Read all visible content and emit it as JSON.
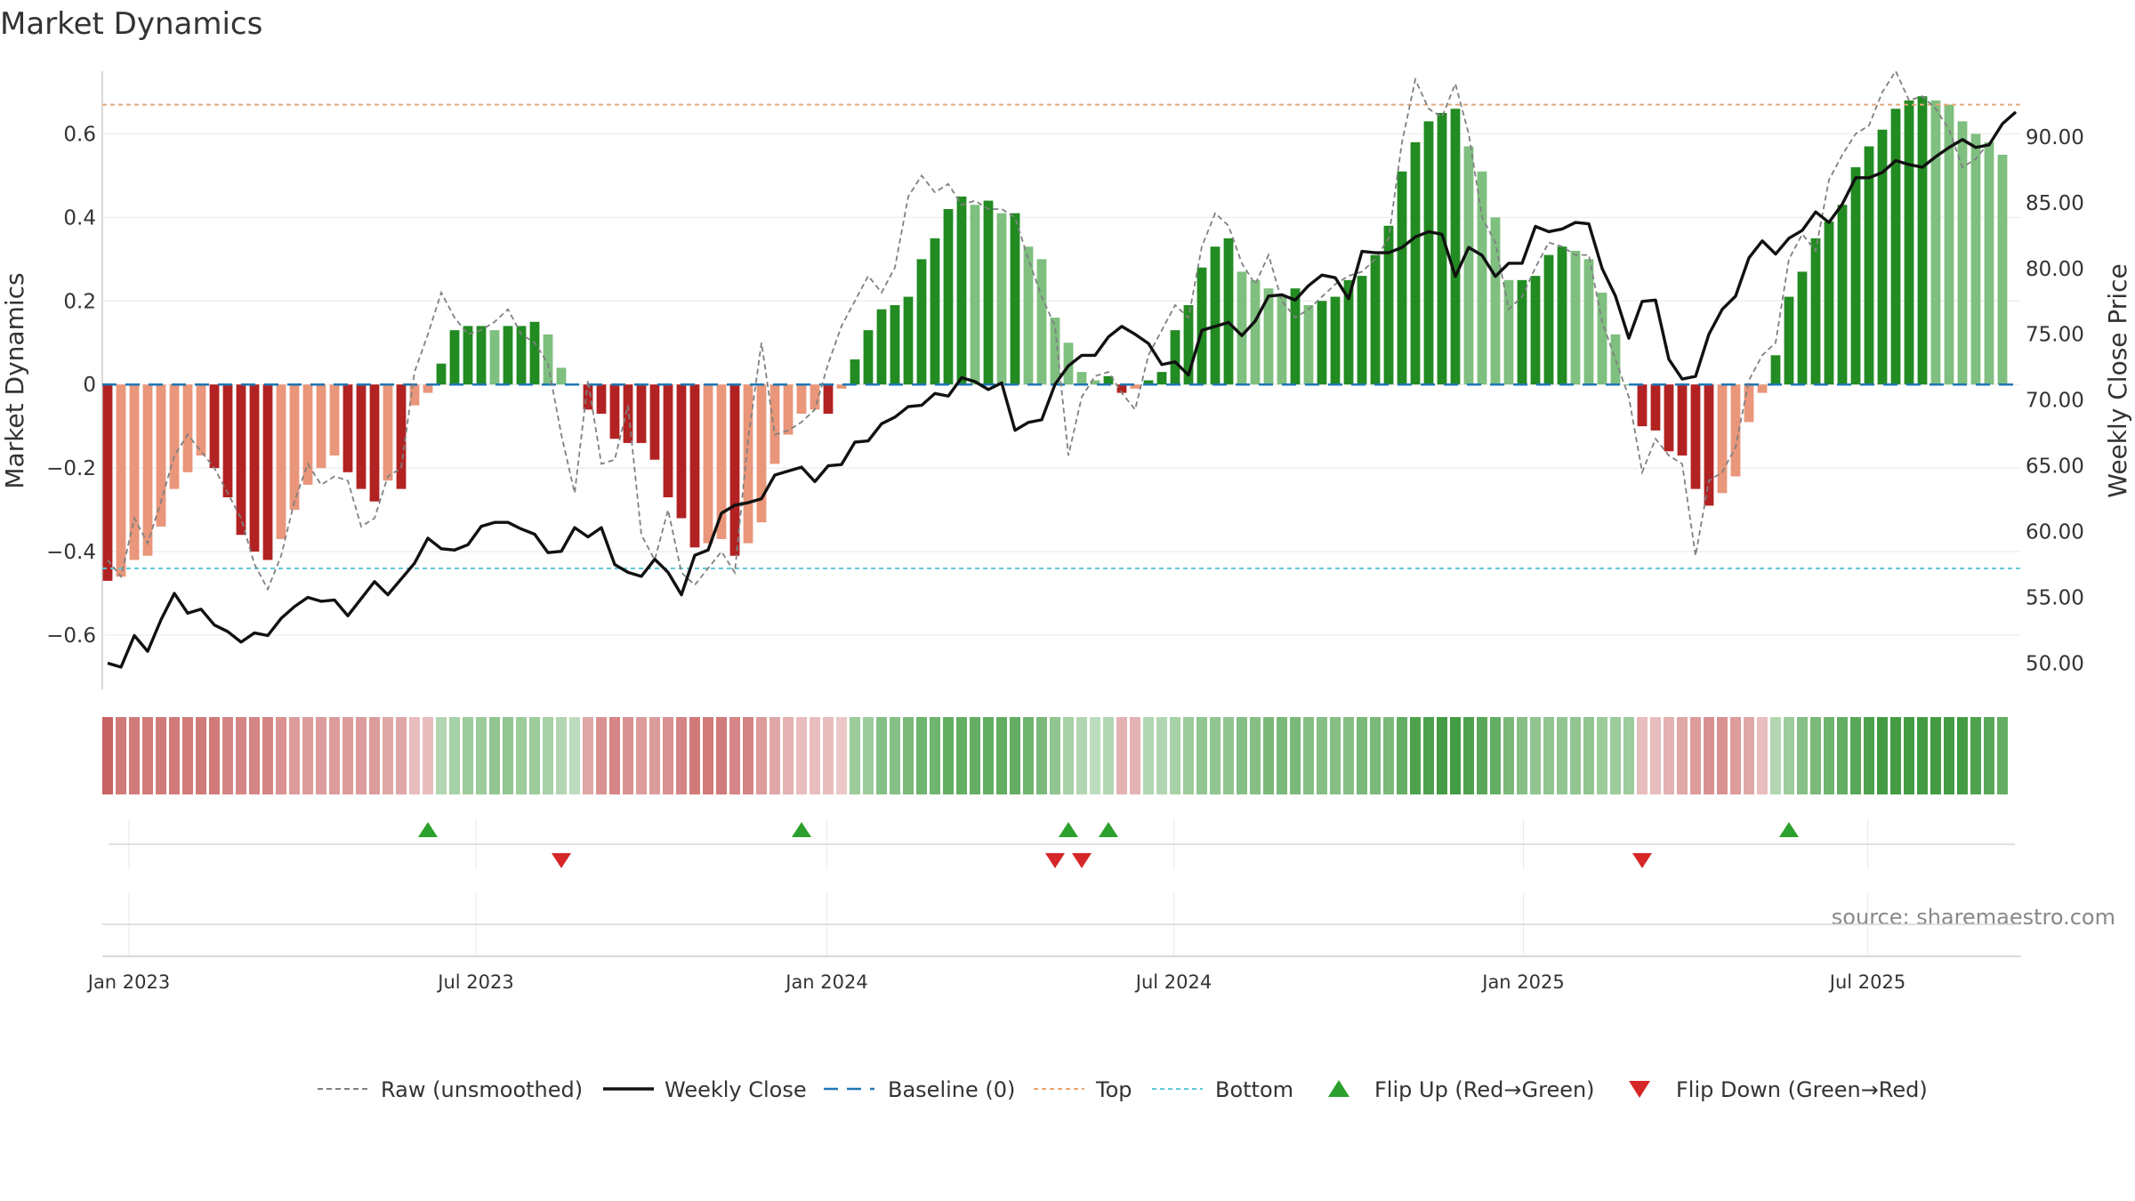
{
  "chart_data": {
    "type": "bar",
    "title": "Market Dynamics",
    "ylabel_left": "Market Dynamics",
    "ylabel_right": "Weekly Close Price",
    "source": "source: sharemaestro.com",
    "left_ylim": [
      -0.73,
      0.75
    ],
    "right_ylim": [
      48.0,
      95.0
    ],
    "left_ticks": [
      "-0.6",
      "-0.4",
      "-0.2",
      "0",
      "0.2",
      "0.4",
      "0.6"
    ],
    "right_ticks": [
      "50.00",
      "55.00",
      "60.00",
      "65.00",
      "70.00",
      "75.00",
      "80.00",
      "85.00",
      "90.00"
    ],
    "x_ticks": [
      {
        "label": "Jan 2023",
        "week": 1.6
      },
      {
        "label": "Jul 2023",
        "week": 27.6
      },
      {
        "label": "Jan 2024",
        "week": 53.9
      },
      {
        "label": "Jul 2024",
        "week": 79.9
      },
      {
        "label": "Jan 2025",
        "week": 106.1
      },
      {
        "label": "Jul 2025",
        "week": 131.9
      }
    ],
    "x_range_weeks": [
      -0.4,
      143.4
    ],
    "top_level": 0.67,
    "bottom_level": -0.44,
    "grid": true,
    "legend_position": "bottom-center",
    "colors": {
      "strong_green": "#228B22",
      "light_green": "#7FBF7F",
      "strong_red": "#B22222",
      "light_red": "#E9967A",
      "raw_line": "#808080",
      "close_line": "#111111",
      "baseline": "#1F77B4",
      "top": "#E8A878",
      "bottom": "#5BC8D8",
      "flip_up": "#2CA02C",
      "flip_down": "#D62728"
    },
    "series": [
      {
        "name": "Market Dynamics",
        "values": [
          -0.47,
          -0.46,
          -0.42,
          -0.41,
          -0.34,
          -0.25,
          -0.21,
          -0.17,
          -0.2,
          -0.27,
          -0.36,
          -0.4,
          -0.42,
          -0.37,
          -0.3,
          -0.24,
          -0.2,
          -0.17,
          -0.21,
          -0.25,
          -0.28,
          -0.23,
          -0.25,
          -0.05,
          -0.02,
          0.05,
          0.13,
          0.14,
          0.14,
          0.13,
          0.14,
          0.14,
          0.15,
          0.12,
          0.04,
          0.0,
          -0.06,
          -0.07,
          -0.13,
          -0.14,
          -0.14,
          -0.18,
          -0.27,
          -0.32,
          -0.39,
          -0.38,
          -0.37,
          -0.41,
          -0.38,
          -0.33,
          -0.19,
          -0.12,
          -0.07,
          -0.06,
          -0.07,
          -0.01,
          0.06,
          0.13,
          0.18,
          0.19,
          0.21,
          0.3,
          0.35,
          0.42,
          0.45,
          0.43,
          0.44,
          0.41,
          0.41,
          0.33,
          0.3,
          0.16,
          0.1,
          0.03,
          0.01,
          0.02,
          -0.02,
          -0.01,
          0.01,
          0.03,
          0.13,
          0.19,
          0.28,
          0.33,
          0.35,
          0.27,
          0.25,
          0.23,
          0.21,
          0.23,
          0.19,
          0.2,
          0.21,
          0.25,
          0.26,
          0.31,
          0.38,
          0.51,
          0.58,
          0.63,
          0.65,
          0.66,
          0.57,
          0.51,
          0.4,
          0.25,
          0.25,
          0.26,
          0.31,
          0.33,
          0.32,
          0.3,
          0.22,
          0.12,
          0.0,
          -0.1,
          -0.11,
          -0.16,
          -0.17,
          -0.25,
          -0.29,
          -0.26,
          -0.22,
          -0.09,
          -0.02,
          0.07,
          0.21,
          0.27,
          0.35,
          0.39,
          0.43,
          0.52,
          0.57,
          0.61,
          0.66,
          0.68,
          0.69,
          0.68,
          0.67,
          0.63,
          0.6,
          0.58,
          0.55
        ]
      },
      {
        "name": "Raw (unsmoothed)",
        "values": [
          -0.42,
          -0.46,
          -0.32,
          -0.38,
          -0.28,
          -0.17,
          -0.12,
          -0.16,
          -0.2,
          -0.26,
          -0.32,
          -0.43,
          -0.49,
          -0.41,
          -0.28,
          -0.19,
          -0.24,
          -0.22,
          -0.23,
          -0.34,
          -0.32,
          -0.22,
          -0.2,
          0.03,
          0.12,
          0.22,
          0.16,
          0.12,
          0.13,
          0.15,
          0.18,
          0.12,
          0.1,
          0.05,
          -0.12,
          -0.26,
          0.01,
          -0.19,
          -0.18,
          -0.05,
          -0.36,
          -0.42,
          -0.3,
          -0.45,
          -0.48,
          -0.44,
          -0.4,
          -0.45,
          -0.13,
          0.1,
          -0.12,
          -0.11,
          -0.09,
          -0.06,
          0.05,
          0.14,
          0.2,
          0.26,
          0.22,
          0.28,
          0.45,
          0.5,
          0.46,
          0.48,
          0.43,
          0.44,
          0.42,
          0.42,
          0.4,
          0.3,
          0.21,
          0.14,
          -0.17,
          -0.03,
          0.02,
          0.03,
          -0.02,
          -0.06,
          0.07,
          0.13,
          0.19,
          0.16,
          0.33,
          0.41,
          0.38,
          0.29,
          0.24,
          0.31,
          0.2,
          0.16,
          0.18,
          0.21,
          0.24,
          0.26,
          0.27,
          0.3,
          0.35,
          0.58,
          0.73,
          0.66,
          0.64,
          0.72,
          0.6,
          0.4,
          0.34,
          0.18,
          0.21,
          0.28,
          0.34,
          0.33,
          0.31,
          0.31,
          0.15,
          0.06,
          -0.03,
          -0.21,
          -0.13,
          -0.17,
          -0.19,
          -0.41,
          -0.23,
          -0.21,
          -0.15,
          0.01,
          0.07,
          0.1,
          0.3,
          0.36,
          0.32,
          0.49,
          0.55,
          0.6,
          0.62,
          0.7,
          0.75,
          0.68,
          0.69,
          0.66,
          0.61,
          0.52,
          0.54,
          0.58
        ]
      },
      {
        "name": "Weekly Close",
        "values": [
          50.0,
          49.7,
          52.1,
          50.9,
          53.3,
          55.3,
          53.8,
          54.1,
          52.9,
          52.4,
          51.6,
          52.3,
          52.1,
          53.4,
          54.3,
          55.0,
          54.7,
          54.8,
          53.6,
          54.9,
          56.2,
          55.2,
          56.4,
          57.6,
          59.5,
          58.7,
          58.6,
          59.0,
          60.4,
          60.7,
          60.7,
          60.2,
          59.8,
          58.4,
          58.5,
          60.3,
          59.6,
          60.3,
          57.5,
          56.9,
          56.6,
          57.9,
          56.9,
          55.2,
          58.2,
          58.6,
          61.4,
          62.0,
          62.2,
          62.5,
          64.3,
          64.6,
          64.9,
          63.8,
          65.0,
          65.1,
          66.8,
          66.9,
          68.2,
          68.7,
          69.5,
          69.6,
          70.5,
          70.3,
          71.7,
          71.4,
          70.8,
          71.3,
          67.7,
          68.3,
          68.5,
          71.2,
          72.6,
          73.4,
          73.4,
          74.8,
          75.6,
          75.0,
          74.3,
          72.7,
          72.9,
          71.9,
          75.3,
          75.6,
          75.9,
          74.9,
          76.0,
          77.9,
          78.0,
          77.6,
          78.7,
          79.5,
          79.3,
          77.7,
          81.3,
          81.2,
          81.2,
          81.6,
          82.4,
          82.8,
          82.6,
          79.4,
          81.6,
          81.0,
          79.4,
          80.4,
          80.4,
          83.2,
          82.8,
          83.0,
          83.5,
          83.4,
          80.0,
          77.9,
          74.7,
          77.5,
          77.6,
          73.1,
          71.6,
          71.8,
          75.0,
          76.9,
          77.9,
          80.8,
          82.1,
          81.1,
          82.3,
          82.9,
          84.3,
          83.5,
          84.9,
          86.9,
          86.9,
          87.3,
          88.2,
          87.9,
          87.7,
          88.5,
          89.2,
          89.8,
          89.2,
          89.4,
          91.0,
          91.9
        ]
      }
    ],
    "phase_strip_levels": [
      0.7,
      0.6,
      0.6,
      0.6,
      0.6,
      0.6,
      0.6,
      0.6,
      0.6,
      0.55,
      0.55,
      0.55,
      0.55,
      0.5,
      0.45,
      0.45,
      0.45,
      0.45,
      0.45,
      0.45,
      0.45,
      0.4,
      0.4,
      0.3,
      0.3,
      0.35,
      0.4,
      0.45,
      0.45,
      0.5,
      0.5,
      0.45,
      0.45,
      0.4,
      0.35,
      0.3,
      0.4,
      0.5,
      0.55,
      0.5,
      0.45,
      0.45,
      0.5,
      0.55,
      0.6,
      0.6,
      0.6,
      0.55,
      0.55,
      0.45,
      0.4,
      0.35,
      0.3,
      0.3,
      0.3,
      0.25,
      0.45,
      0.45,
      0.55,
      0.55,
      0.6,
      0.65,
      0.65,
      0.7,
      0.7,
      0.7,
      0.7,
      0.7,
      0.7,
      0.65,
      0.6,
      0.5,
      0.4,
      0.35,
      0.3,
      0.35,
      0.35,
      0.35,
      0.35,
      0.35,
      0.4,
      0.45,
      0.5,
      0.5,
      0.5,
      0.55,
      0.55,
      0.6,
      0.6,
      0.6,
      0.55,
      0.55,
      0.55,
      0.55,
      0.6,
      0.6,
      0.6,
      0.7,
      0.8,
      0.8,
      0.85,
      0.85,
      0.8,
      0.75,
      0.7,
      0.6,
      0.55,
      0.5,
      0.5,
      0.5,
      0.5,
      0.5,
      0.45,
      0.45,
      0.45,
      0.3,
      0.3,
      0.35,
      0.4,
      0.45,
      0.5,
      0.5,
      0.45,
      0.4,
      0.3,
      0.35,
      0.45,
      0.55,
      0.6,
      0.65,
      0.7,
      0.75,
      0.8,
      0.85,
      0.85,
      0.85,
      0.85,
      0.85,
      0.85,
      0.85,
      0.8,
      0.75,
      0.7
    ],
    "flip_up_weeks": [
      24,
      52,
      72,
      75,
      126
    ],
    "flip_down_weeks": [
      34,
      71,
      73,
      115
    ],
    "legend": [
      {
        "label": "Raw (unsmoothed)",
        "style": "dashed-grey"
      },
      {
        "label": "Weekly Close",
        "style": "solid-black"
      },
      {
        "label": "Baseline (0)",
        "style": "dashed-blue"
      },
      {
        "label": "Top",
        "style": "dotted-orange"
      },
      {
        "label": "Bottom",
        "style": "dotted-cyan"
      },
      {
        "label": "Flip Up (Red→Green)",
        "style": "triangle-up-green"
      },
      {
        "label": "Flip Down (Green→Red)",
        "style": "triangle-down-red"
      }
    ]
  }
}
